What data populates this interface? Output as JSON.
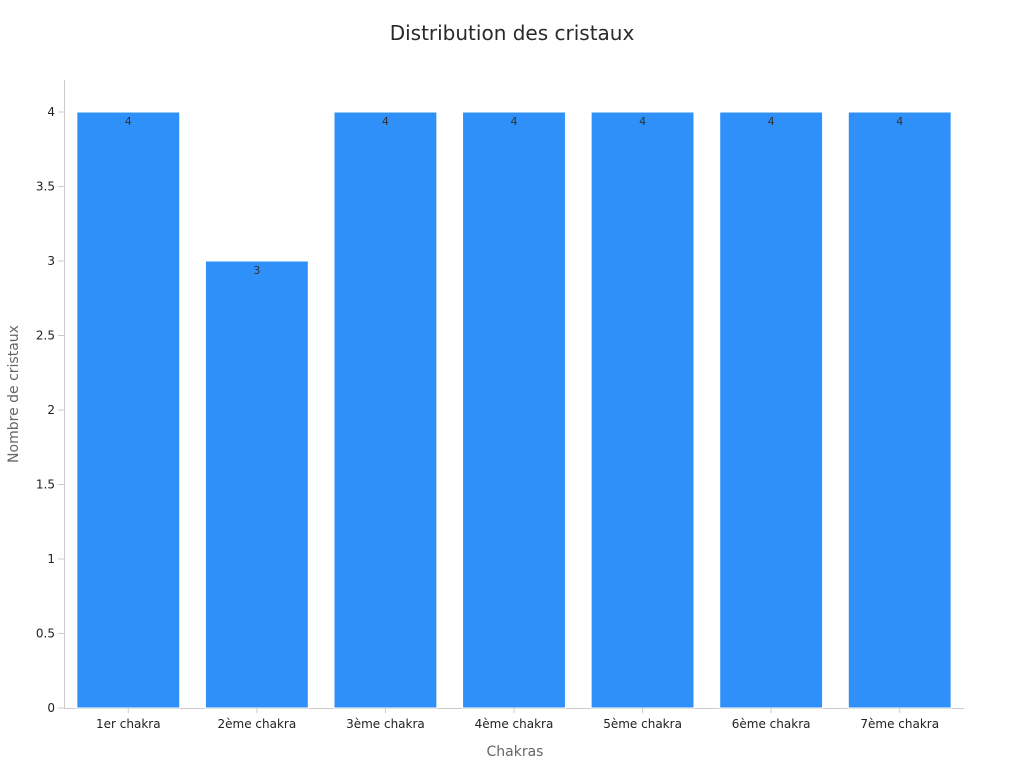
{
  "chart_data": {
    "type": "bar",
    "title": "Distribution des cristaux",
    "xlabel": "Chakras",
    "ylabel": "Nombre de cristaux",
    "categories": [
      "1er chakra",
      "2ème chakra",
      "3ème chakra",
      "4ème chakra",
      "5ème chakra",
      "6ème chakra",
      "7ème chakra"
    ],
    "values": [
      4,
      3,
      4,
      4,
      4,
      4,
      4
    ],
    "data_labels": [
      "4",
      "3",
      "4",
      "4",
      "4",
      "4",
      "4"
    ],
    "ylim": [
      0,
      4.2
    ],
    "yticks": [
      0,
      0.5,
      1,
      1.5,
      2,
      2.5,
      3,
      3.5,
      4
    ],
    "ytick_labels": [
      "0",
      "0.5",
      "1",
      "1.5",
      "2",
      "2.5",
      "3",
      "3.5",
      "4"
    ],
    "grid": false,
    "legend": "none",
    "bar_color": "#2e90f8",
    "axis_color": "#cccccc"
  }
}
